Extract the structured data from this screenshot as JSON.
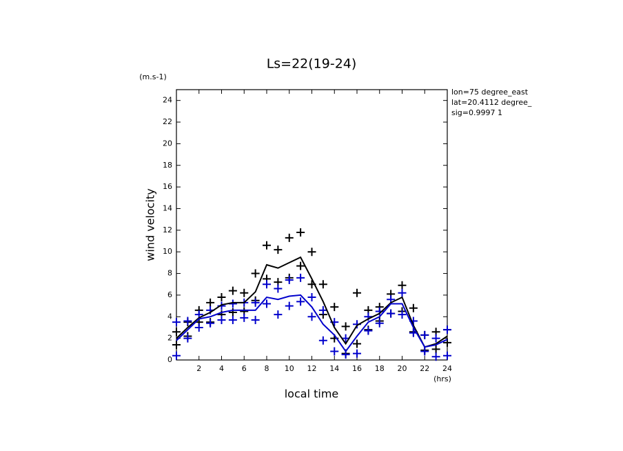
{
  "chart_data": {
    "type": "line",
    "title": "Ls=22(19-24)",
    "y_unit": "(m.s-1)",
    "y_label": "wind velocity",
    "x_label": "local time",
    "x_unit": "(hrs)",
    "annotations": [
      "lon=75 degree_east",
      "lat=20.4112 degree_",
      "sig=0.9997 1"
    ],
    "xlim": [
      0,
      24
    ],
    "ylim": [
      0,
      25
    ],
    "xticks": [
      2,
      4,
      6,
      8,
      10,
      12,
      14,
      16,
      18,
      20,
      22,
      24
    ],
    "yticks": [
      0,
      2,
      4,
      6,
      8,
      10,
      12,
      14,
      16,
      18,
      20,
      22,
      24
    ],
    "x": [
      0,
      1,
      2,
      3,
      4,
      5,
      6,
      7,
      8,
      9,
      10,
      11,
      12,
      13,
      14,
      15,
      16,
      17,
      18,
      19,
      20,
      21,
      22,
      23,
      24
    ],
    "series": [
      {
        "style": "markers",
        "color": "#000000",
        "values": [
          2.6,
          3.5,
          4.6,
          5.3,
          5.8,
          6.4,
          6.2,
          8.0,
          10.6,
          10.2,
          11.3,
          11.8,
          10.0,
          7.0,
          4.9,
          3.1,
          6.2,
          4.6,
          4.9,
          6.1,
          6.9,
          4.8,
          2.3,
          2.6,
          2.8
        ]
      },
      {
        "style": "markers",
        "color": "#000000",
        "values": [
          1.4,
          2.2,
          3.5,
          3.5,
          4.2,
          4.4,
          4.5,
          5.5,
          7.5,
          7.2,
          7.6,
          8.7,
          7.0,
          4.2,
          2.0,
          0.6,
          1.5,
          2.8,
          3.6,
          4.3,
          4.5,
          2.6,
          0.9,
          1.0,
          1.6
        ]
      },
      {
        "style": "markers",
        "color": "#0000cc",
        "values": [
          3.5,
          3.6,
          4.2,
          4.6,
          5.0,
          5.2,
          5.3,
          5.3,
          7.0,
          6.6,
          7.4,
          7.6,
          5.8,
          4.6,
          3.5,
          2.0,
          3.3,
          4.0,
          4.5,
          5.6,
          6.2,
          3.6,
          2.3,
          2.0,
          2.8
        ]
      },
      {
        "style": "markers",
        "color": "#0000cc",
        "values": [
          0.4,
          2.0,
          3.0,
          3.4,
          3.7,
          3.7,
          3.9,
          3.7,
          5.2,
          4.2,
          5.0,
          5.4,
          4.0,
          1.8,
          0.8,
          0.5,
          0.6,
          2.7,
          3.4,
          4.3,
          4.2,
          2.5,
          0.8,
          0.3,
          0.4
        ]
      },
      {
        "style": "line",
        "color": "#000000",
        "values": [
          2.0,
          3.0,
          3.9,
          4.4,
          5.1,
          5.3,
          5.3,
          6.3,
          8.8,
          8.5,
          9.0,
          9.5,
          7.5,
          5.4,
          3.0,
          1.5,
          3.2,
          3.8,
          4.3,
          5.3,
          5.8,
          3.2,
          1.2,
          1.5,
          2.2
        ]
      },
      {
        "style": "line",
        "color": "#0000cc",
        "values": [
          1.8,
          2.8,
          3.8,
          4.0,
          4.4,
          4.6,
          4.6,
          4.6,
          5.8,
          5.6,
          5.9,
          6.0,
          4.9,
          3.3,
          2.3,
          0.8,
          2.2,
          3.5,
          4.0,
          5.2,
          5.2,
          3.0,
          1.2,
          1.4,
          1.9
        ]
      }
    ]
  }
}
